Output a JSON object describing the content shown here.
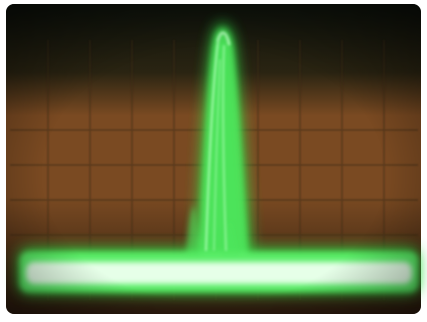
{
  "photo": {
    "subject": "oscilloscope-trace",
    "colors": {
      "frame": "#ffffff",
      "screen_top": "#0d120b",
      "screen_mid": "#7a4a22",
      "screen_bottom": "#2a1a0e",
      "graticule": "#3e2a18",
      "trace_glow": "#36e04a",
      "trace_core": "#e6ffe8"
    }
  }
}
